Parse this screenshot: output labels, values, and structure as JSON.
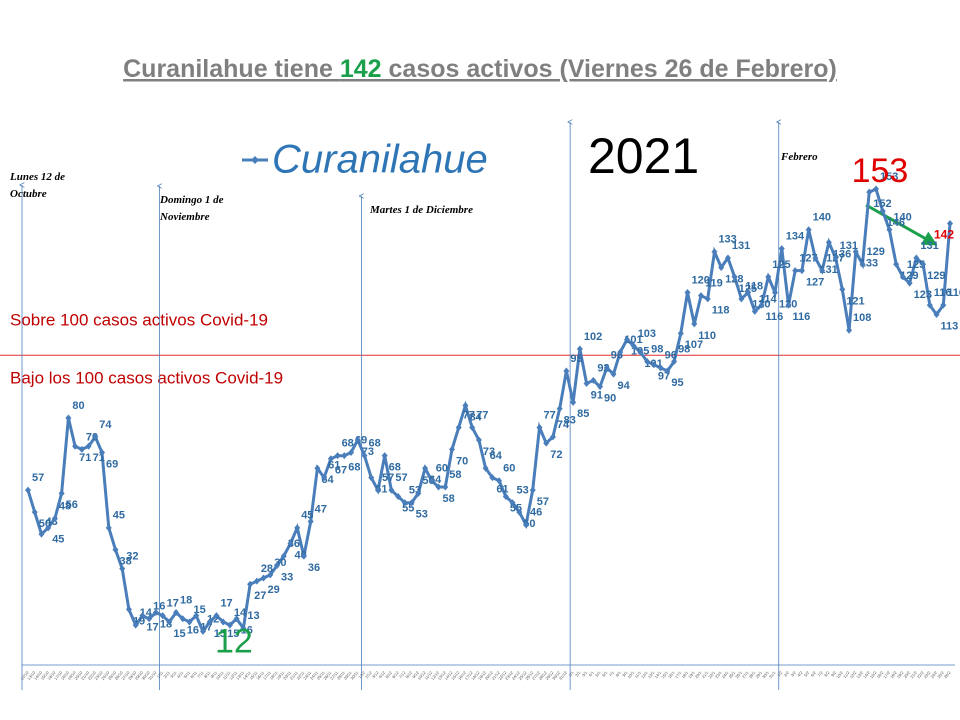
{
  "chart_data": {
    "type": "line",
    "title_parts": [
      "Curanilahue tiene ",
      "142",
      " casos activos (Viernes 26 de Febrero)"
    ],
    "year_label": "2021",
    "threshold": 100,
    "threshold_labels": [
      "Sobre 100 casos activos Covid-19",
      "Bajo los 100 casos activos Covid-19"
    ],
    "period_labels": [
      "Lunes 12 de Octubre",
      "Domingo 1 de Noviembre",
      "Martes 1 de Diciembre",
      "Febrero"
    ],
    "ylim": [
      0,
      175
    ],
    "categories": [
      "12/10",
      "13/10",
      "14/10",
      "15/10",
      "16/10",
      "17/10",
      "18/10",
      "19/10",
      "20/10",
      "21/10",
      "22/10",
      "23/10",
      "24/10",
      "25/10",
      "26/10",
      "27/10",
      "28/10",
      "29/10",
      "30/10",
      "31/10",
      "1/11",
      "2/11",
      "3/11",
      "4/11",
      "5/11",
      "6/11",
      "7/11",
      "8/11",
      "9/11",
      "10/11",
      "11/11",
      "12/11",
      "13/11",
      "14/11",
      "15/11",
      "16/11",
      "17/11",
      "18/11",
      "19/11",
      "20/11",
      "21/11",
      "22/11",
      "23/11",
      "24/11",
      "25/11",
      "26/11",
      "27/11",
      "28/11",
      "29/11",
      "30/11",
      "1/12",
      "2/12",
      "3/12",
      "4/12",
      "5/12",
      "6/12",
      "7/12",
      "8/12",
      "9/12",
      "10/12",
      "11/12",
      "12/12",
      "13/12",
      "14/12",
      "15/12",
      "16/12",
      "17/12",
      "18/12",
      "19/12",
      "20/12",
      "21/12",
      "22/12",
      "23/12",
      "24/12",
      "25/12",
      "26/12",
      "27/12",
      "28/12",
      "29/12",
      "30/12",
      "31/12",
      "1/1",
      "2/1",
      "3/1",
      "4/1",
      "5/1",
      "6/1",
      "7/1",
      "8/1",
      "9/1",
      "10/1",
      "11/1",
      "12/1",
      "13/1",
      "14/1",
      "15/1",
      "16/1",
      "17/1",
      "18/1",
      "19/1",
      "20/1",
      "21/1",
      "22/1",
      "23/1",
      "24/1",
      "25/1",
      "26/1",
      "27/1",
      "28/1",
      "29/1",
      "30/1",
      "31/1",
      "1/2",
      "2/2",
      "3/2",
      "4/2",
      "5/2",
      "6/2",
      "7/2",
      "8/2",
      "9/2",
      "10/2",
      "11/2",
      "12/2",
      "13/2",
      "14/2",
      "15/2",
      "16/2",
      "17/2",
      "18/2",
      "19/2",
      "20/2",
      "21/2",
      "22/2",
      "23/2",
      "24/2",
      "25/2",
      "26/2"
    ],
    "series": [
      {
        "name": "Curanilahue",
        "color": "#4a7ebb",
        "values": [
          57,
          50,
          43,
          45,
          48,
          56,
          80,
          71,
          70,
          71,
          74,
          69,
          45,
          38,
          32,
          19,
          14,
          17,
          16,
          18,
          17,
          15,
          18,
          16,
          15,
          17,
          12,
          15,
          17,
          15,
          14,
          16,
          13,
          27,
          28,
          29,
          30,
          33,
          36,
          40,
          45,
          36,
          47,
          64,
          61,
          67,
          68,
          68,
          69,
          73,
          68,
          61,
          57,
          68,
          57,
          55,
          53,
          53,
          56,
          64,
          60,
          58,
          58,
          70,
          77,
          84,
          77,
          73,
          64,
          61,
          60,
          55,
          53,
          50,
          46,
          57,
          77,
          72,
          74,
          83,
          95,
          85,
          102,
          91,
          92,
          90,
          96,
          94,
          101,
          105,
          103,
          101,
          98,
          97,
          96,
          95,
          98,
          107,
          120,
          110,
          119,
          118,
          133,
          128,
          131,
          125,
          118,
          120,
          114,
          116,
          125,
          120,
          134,
          116,
          127,
          127,
          140,
          131,
          127,
          136,
          131,
          121,
          108,
          133,
          129,
          152,
          153,
          146,
          140,
          129,
          125,
          123,
          131,
          129,
          116,
          113,
          116,
          142
        ]
      }
    ]
  }
}
